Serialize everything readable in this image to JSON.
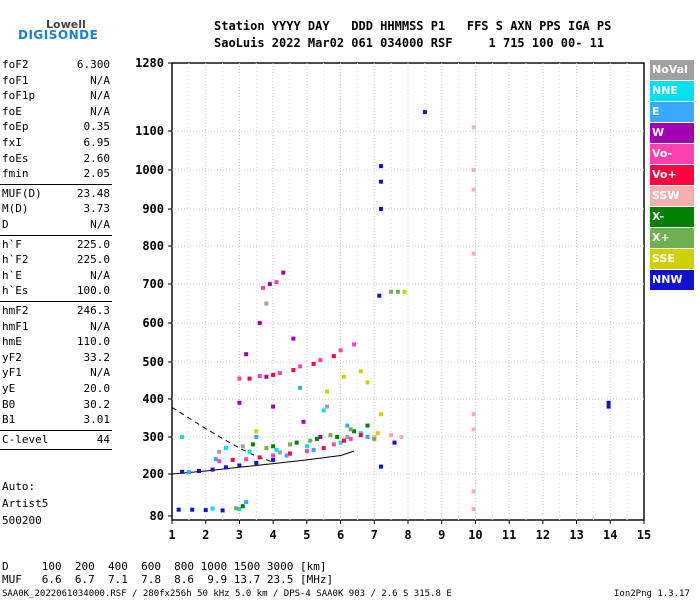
{
  "logo": {
    "top": "Lowell",
    "main": "DIGISONDE"
  },
  "header": {
    "line1": "Station YYYY DAY   DDD HHMMSS P1   FFS S AXN PPS IGA PS",
    "line2": "SaoLuis 2022 Mar02 061 034000 RSF     1 715 100 00- 11"
  },
  "params": [
    {
      "k": "foF2",
      "v": "6.300"
    },
    {
      "k": "foF1",
      "v": "N/A"
    },
    {
      "k": "foF1p",
      "v": "N/A"
    },
    {
      "k": "foE",
      "v": "N/A"
    },
    {
      "k": "foEp",
      "v": "0.35"
    },
    {
      "k": "fxI",
      "v": "6.95"
    },
    {
      "k": "foEs",
      "v": "2.60"
    },
    {
      "k": "fmin",
      "v": "2.05"
    },
    {
      "k": "MUF(D)",
      "v": "23.48"
    },
    {
      "k": "M(D)",
      "v": "3.73"
    },
    {
      "k": "D",
      "v": "N/A"
    },
    {
      "k": "h`F",
      "v": "225.0"
    },
    {
      "k": "h`F2",
      "v": "225.0"
    },
    {
      "k": "h`E",
      "v": "N/A"
    },
    {
      "k": "h`Es",
      "v": "100.0"
    },
    {
      "k": "hmF2",
      "v": "246.3"
    },
    {
      "k": "hmF1",
      "v": "N/A"
    },
    {
      "k": "hmE",
      "v": "110.0"
    },
    {
      "k": "yF2",
      "v": "33.2"
    },
    {
      "k": "yF1",
      "v": "N/A"
    },
    {
      "k": "yE",
      "v": "20.0"
    },
    {
      "k": "B0",
      "v": "30.2"
    },
    {
      "k": "B1",
      "v": "3.01"
    },
    {
      "k": "C-level",
      "v": "44"
    }
  ],
  "auto": {
    "l1": "Auto:",
    "l2": "Artist5",
    "l3": "500200"
  },
  "footer": {
    "d_row": "D     100  200  400  600  800 1000 1500 3000 [km]",
    "muf_row": "MUF   6.6  6.7  7.1  7.8  8.6  9.9 13.7 23.5 [MHz]",
    "bottom": "SAA0K_2022061034000.RSF / 280fx256h 50 kHz 5.0 km / DPS-4 SAA0K 903 / 2.6 S 315.8 E",
    "version": "Ion2Png 1.3.17"
  },
  "legend": [
    {
      "name": "NoVal",
      "color": "#a0a0a0"
    },
    {
      "name": "NNE",
      "color": "#00e0f0"
    },
    {
      "name": "E",
      "color": "#3aa8ff"
    },
    {
      "name": "W",
      "color": "#a000b0"
    },
    {
      "name": "Vo-",
      "color": "#ff40b0"
    },
    {
      "name": "Vo+",
      "color": "#ff0040"
    },
    {
      "name": "SSW",
      "color": "#f4b0b0"
    },
    {
      "name": "X-",
      "color": "#008000"
    },
    {
      "name": "X+",
      "color": "#70b050"
    },
    {
      "name": "SSE",
      "color": "#d0d000"
    },
    {
      "name": "NNW",
      "color": "#1010d0"
    }
  ],
  "chart_data": {
    "type": "scatter",
    "title": "",
    "xlabel": "",
    "ylabel": "",
    "xlim": [
      1,
      15
    ],
    "ylim": [
      80,
      1280
    ],
    "x_ticks": [
      1,
      2,
      3,
      4,
      5,
      6,
      7,
      8,
      9,
      10,
      11,
      12,
      13,
      14,
      15
    ],
    "y_ticks": [
      80,
      200,
      300,
      400,
      500,
      600,
      700,
      800,
      900,
      1000,
      1100,
      1280
    ],
    "grid": true,
    "legend_position": "right",
    "series": [
      {
        "name": "NoVal",
        "color": "#a0a0a0",
        "points": [
          [
            2.4,
            260
          ],
          [
            3.1,
            275
          ],
          [
            4.2,
            258
          ],
          [
            5.6,
            380
          ],
          [
            6.2,
            300
          ],
          [
            3.8,
            650
          ]
        ]
      },
      {
        "name": "NNE",
        "color": "#00e0f0",
        "points": [
          [
            1.3,
            300
          ],
          [
            2.6,
            270
          ],
          [
            3.3,
            260
          ],
          [
            4.1,
            265
          ],
          [
            5.0,
            275
          ],
          [
            5.5,
            370
          ],
          [
            6.0,
            285
          ],
          [
            6.6,
            310
          ],
          [
            2.2,
            101
          ],
          [
            3.0,
            100
          ]
        ]
      },
      {
        "name": "E",
        "color": "#3aa8ff",
        "points": [
          [
            1.5,
            205
          ],
          [
            2.3,
            240
          ],
          [
            3.5,
            300
          ],
          [
            4.4,
            250
          ],
          [
            5.2,
            265
          ],
          [
            6.2,
            330
          ],
          [
            6.8,
            300
          ],
          [
            3.2,
            120
          ],
          [
            4.8,
            430
          ]
        ]
      },
      {
        "name": "W",
        "color": "#a000b0",
        "points": [
          [
            3.2,
            520
          ],
          [
            3.6,
            600
          ],
          [
            3.9,
            700
          ],
          [
            4.3,
            730
          ],
          [
            4.6,
            560
          ],
          [
            3.8,
            460
          ],
          [
            4.9,
            340
          ],
          [
            5.4,
            300
          ],
          [
            3.0,
            390
          ],
          [
            4.0,
            380
          ]
        ]
      },
      {
        "name": "Vo-",
        "color": "#ff40b0",
        "points": [
          [
            3.0,
            455
          ],
          [
            3.6,
            462
          ],
          [
            4.2,
            470
          ],
          [
            4.8,
            488
          ],
          [
            5.4,
            505
          ],
          [
            6.0,
            530
          ],
          [
            6.4,
            545
          ],
          [
            2.4,
            235
          ],
          [
            3.2,
            240
          ],
          [
            4.0,
            250
          ],
          [
            5.0,
            262
          ],
          [
            5.8,
            280
          ],
          [
            6.3,
            295
          ],
          [
            3.7,
            690
          ],
          [
            4.1,
            705
          ]
        ]
      },
      {
        "name": "Vo+",
        "color": "#ff0040",
        "points": [
          [
            3.3,
            455
          ],
          [
            4.0,
            465
          ],
          [
            4.6,
            478
          ],
          [
            5.2,
            495
          ],
          [
            5.8,
            515
          ],
          [
            2.8,
            238
          ],
          [
            3.6,
            245
          ],
          [
            4.5,
            255
          ],
          [
            5.5,
            270
          ],
          [
            6.1,
            290
          ],
          [
            6.6,
            305
          ]
        ]
      },
      {
        "name": "SSW",
        "color": "#f4b0b0",
        "points": [
          [
            9.95,
            1110
          ],
          [
            9.95,
            1000
          ],
          [
            9.95,
            950
          ],
          [
            9.95,
            780
          ],
          [
            9.95,
            360
          ],
          [
            9.95,
            320
          ],
          [
            9.95,
            150
          ],
          [
            9.95,
            100
          ],
          [
            7.0,
            300
          ],
          [
            7.5,
            305
          ],
          [
            7.8,
            300
          ]
        ]
      },
      {
        "name": "X-",
        "color": "#008000",
        "points": [
          [
            3.1,
            108
          ],
          [
            3.4,
            280
          ],
          [
            4.0,
            275
          ],
          [
            4.7,
            285
          ],
          [
            5.3,
            295
          ],
          [
            5.9,
            300
          ],
          [
            6.4,
            315
          ],
          [
            6.8,
            330
          ]
        ]
      },
      {
        "name": "X+",
        "color": "#70b050",
        "points": [
          [
            2.9,
            102
          ],
          [
            3.8,
            270
          ],
          [
            4.5,
            280
          ],
          [
            5.1,
            290
          ],
          [
            5.7,
            305
          ],
          [
            6.3,
            320
          ],
          [
            7.0,
            295
          ],
          [
            7.5,
            680
          ],
          [
            7.7,
            680
          ]
        ]
      },
      {
        "name": "SSE",
        "color": "#d0d000",
        "points": [
          [
            5.6,
            420
          ],
          [
            6.1,
            460
          ],
          [
            6.6,
            475
          ],
          [
            6.8,
            445
          ],
          [
            7.2,
            360
          ],
          [
            7.9,
            680
          ],
          [
            7.1,
            310
          ],
          [
            3.5,
            315
          ]
        ]
      },
      {
        "name": "NNW",
        "color": "#1010d0",
        "points": [
          [
            1.2,
            98
          ],
          [
            1.6,
            98
          ],
          [
            2.0,
            97
          ],
          [
            2.5,
            96
          ],
          [
            1.3,
            206
          ],
          [
            1.8,
            208
          ],
          [
            2.2,
            212
          ],
          [
            2.6,
            218
          ],
          [
            3.0,
            223
          ],
          [
            3.5,
            230
          ],
          [
            4.0,
            238
          ],
          [
            7.15,
            670
          ],
          [
            7.2,
            970
          ],
          [
            7.2,
            1010
          ],
          [
            7.2,
            900
          ],
          [
            7.2,
            220
          ],
          [
            7.6,
            285
          ],
          [
            8.5,
            1150
          ],
          [
            13.95,
            380
          ],
          [
            13.95,
            390
          ]
        ]
      }
    ],
    "curves": [
      {
        "name": "profile",
        "color": "#000000",
        "points": [
          [
            1.0,
            200
          ],
          [
            2.0,
            208
          ],
          [
            3.0,
            218
          ],
          [
            4.0,
            228
          ],
          [
            5.0,
            238
          ],
          [
            6.0,
            250
          ],
          [
            6.4,
            262
          ]
        ]
      },
      {
        "name": "model",
        "color": "#000000",
        "dashed": true,
        "points": [
          [
            1.0,
            378
          ],
          [
            1.5,
            350
          ],
          [
            2.0,
            322
          ],
          [
            2.5,
            296
          ],
          [
            3.0,
            270
          ],
          [
            3.5,
            248
          ],
          [
            4.0,
            232
          ]
        ]
      }
    ]
  }
}
